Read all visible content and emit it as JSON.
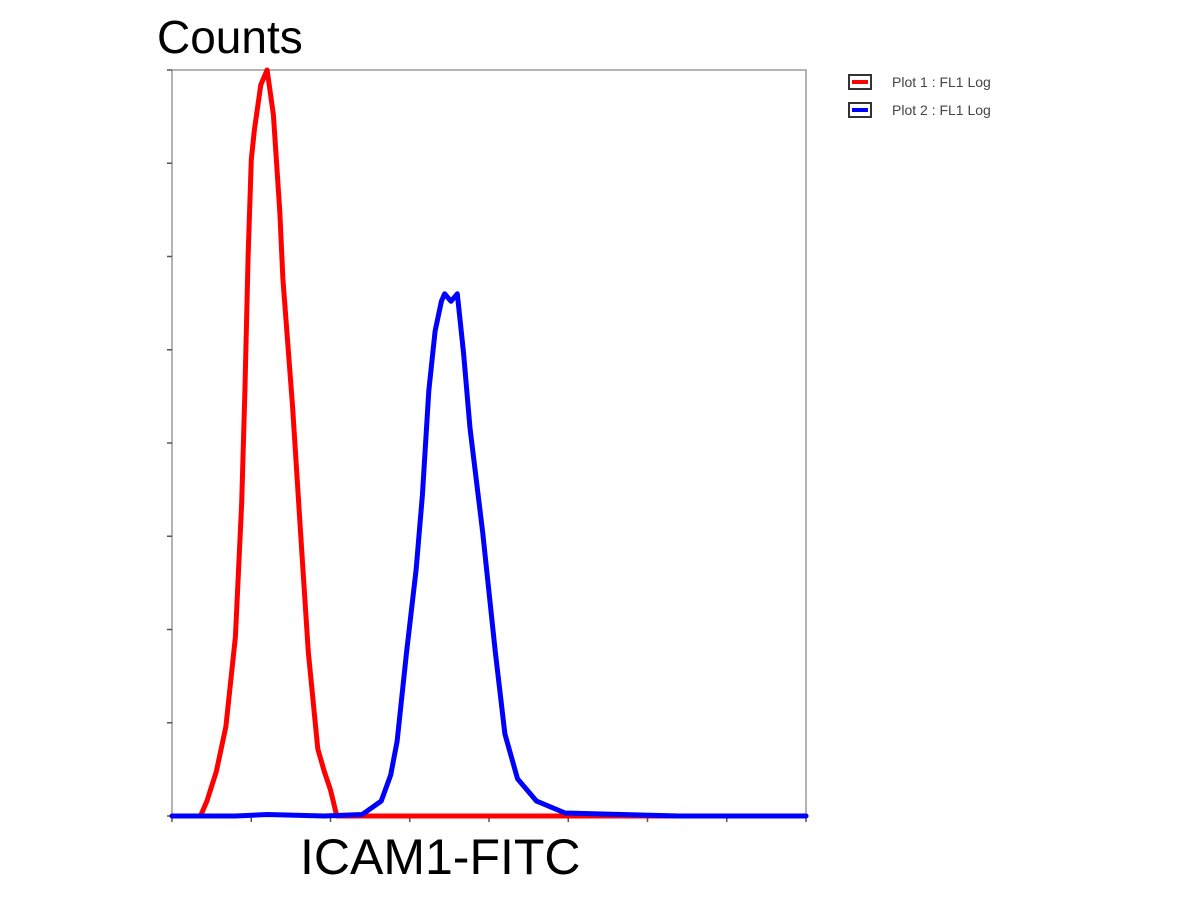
{
  "chart_data": {
    "type": "line",
    "title": "",
    "xlabel": "ICAM1-FITC",
    "ylabel": "Counts",
    "xlim": [
      0,
      1
    ],
    "ylim": [
      0,
      1
    ],
    "x_ticks_labeled": false,
    "y_ticks_labeled": false,
    "legend_position": "top-right",
    "series": [
      {
        "name": "Plot 1 : FL1 Log",
        "color": "#ff0000",
        "x": [
          0.0,
          0.045,
          0.055,
          0.07,
          0.085,
          0.1,
          0.11,
          0.115,
          0.12,
          0.125,
          0.13,
          0.14,
          0.15,
          0.16,
          0.17,
          0.175,
          0.19,
          0.205,
          0.215,
          0.23,
          0.24,
          0.25,
          0.26,
          1.0
        ],
        "y": [
          0.0,
          0.0,
          0.02,
          0.06,
          0.12,
          0.24,
          0.42,
          0.57,
          0.75,
          0.88,
          0.92,
          0.98,
          1.0,
          0.94,
          0.81,
          0.72,
          0.55,
          0.35,
          0.22,
          0.09,
          0.06,
          0.035,
          0.0,
          0.0
        ]
      },
      {
        "name": "Plot 2 : FL1 Log",
        "color": "#0000ff",
        "x": [
          0.0,
          0.05,
          0.1,
          0.15,
          0.24,
          0.3,
          0.33,
          0.345,
          0.355,
          0.37,
          0.385,
          0.395,
          0.405,
          0.415,
          0.425,
          0.43,
          0.44,
          0.45,
          0.46,
          0.47,
          0.49,
          0.51,
          0.525,
          0.545,
          0.575,
          0.62,
          0.8,
          1.0
        ],
        "y": [
          0.0,
          0.0,
          0.0,
          0.002,
          0.0,
          0.002,
          0.02,
          0.055,
          0.1,
          0.22,
          0.33,
          0.43,
          0.57,
          0.65,
          0.69,
          0.7,
          0.69,
          0.7,
          0.62,
          0.52,
          0.38,
          0.22,
          0.11,
          0.05,
          0.02,
          0.004,
          0.0,
          0.0
        ]
      }
    ]
  }
}
